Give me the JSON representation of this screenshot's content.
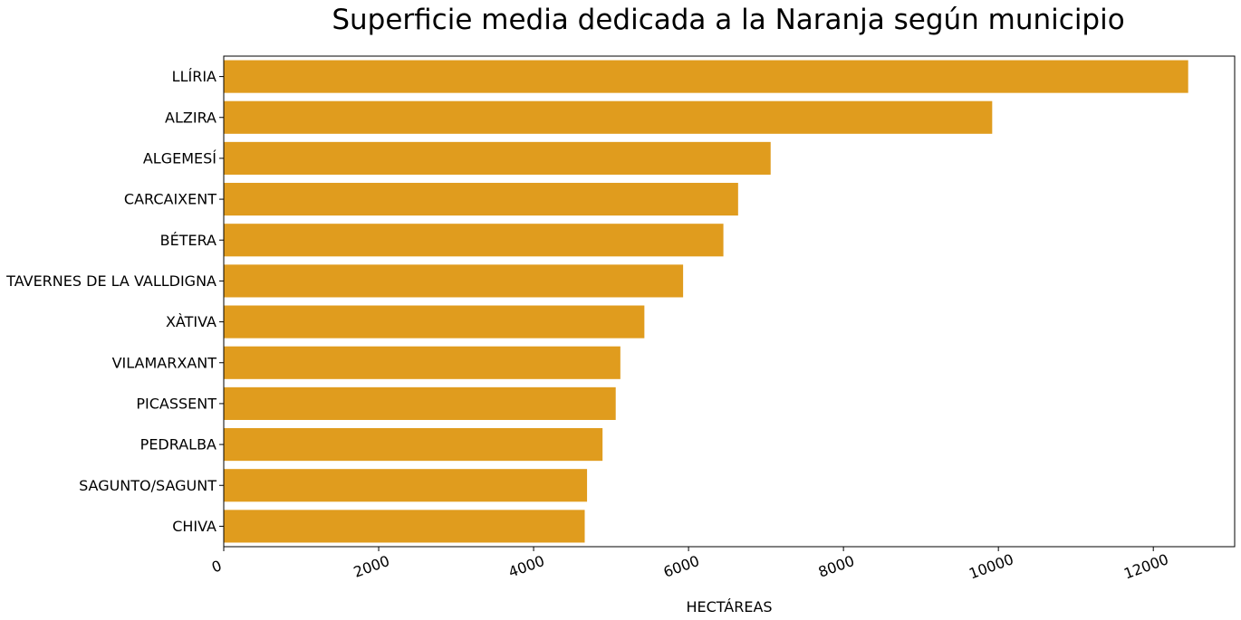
{
  "chart_data": {
    "type": "bar",
    "orientation": "horizontal",
    "title": "Superficie media dedicada a la Naranja según municipio",
    "xlabel": "HECTÁREAS",
    "ylabel": "",
    "xlim": [
      0,
      13050
    ],
    "x_ticks": [
      "0",
      "2000",
      "4000",
      "6000",
      "8000",
      "10000",
      "12000"
    ],
    "x_tick_values": [
      0,
      2000,
      4000,
      6000,
      8000,
      10000,
      12000
    ],
    "categories": [
      "LLÍRIA",
      "ALZIRA",
      "ALGEMESÍ",
      "CARCAIXENT",
      "BÉTERA",
      "TAVERNES DE LA VALLDIGNA",
      "XÀTIVA",
      "VILAMARXANT",
      "PICASSENT",
      "PEDRALBA",
      "SAGUNTO/SAGUNT",
      "CHIVA"
    ],
    "values": [
      12450,
      9920,
      7060,
      6640,
      6450,
      5930,
      5430,
      5120,
      5060,
      4890,
      4690,
      4660
    ],
    "bar_color": "#e09c1e",
    "grid": false,
    "legend": "none"
  }
}
